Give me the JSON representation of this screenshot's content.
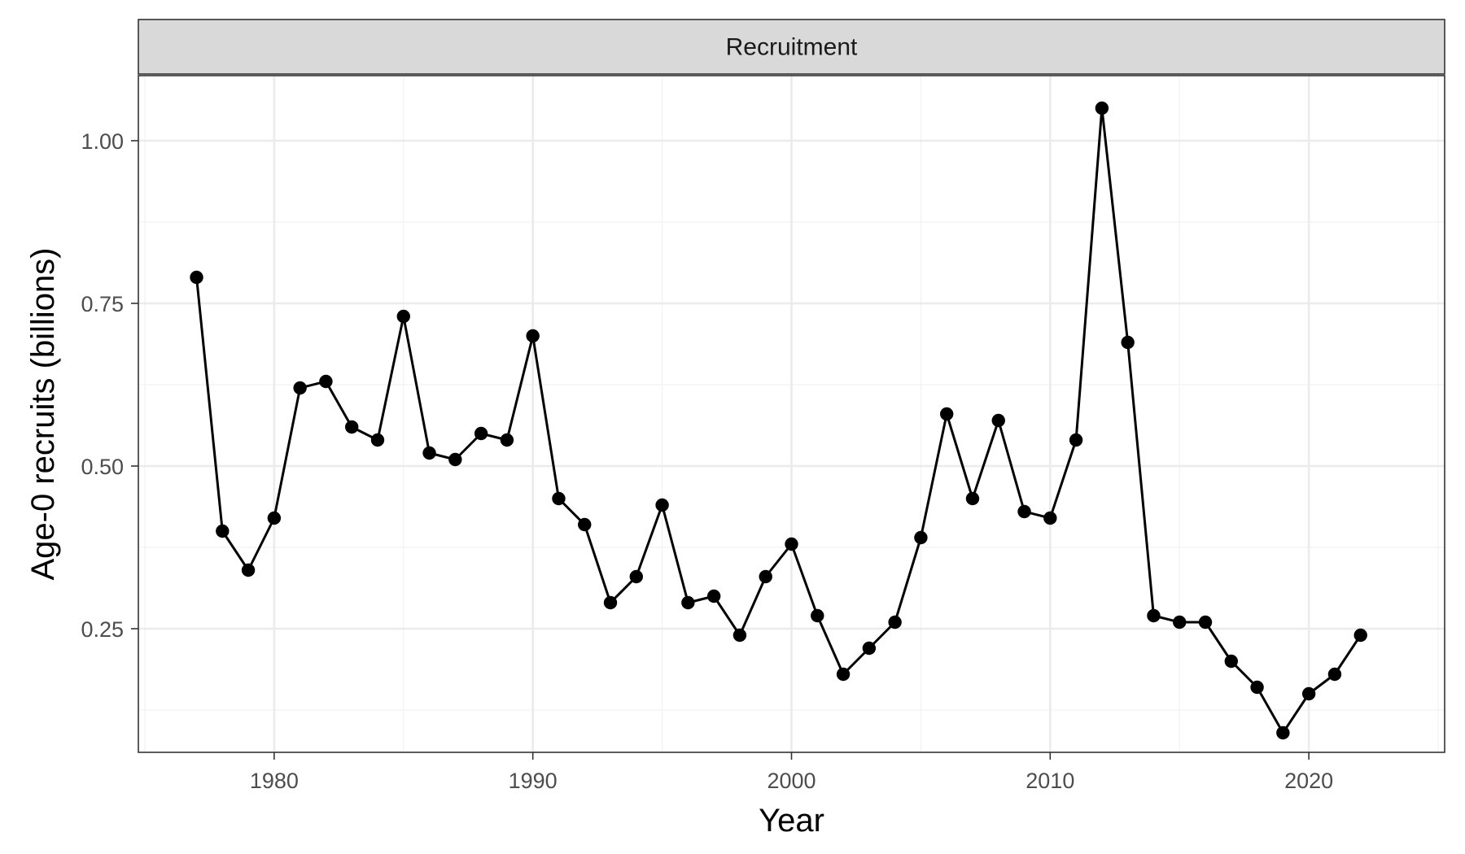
{
  "chart_data": {
    "type": "line",
    "facet_label": "Recruitment",
    "xlabel": "Year",
    "ylabel": "Age-0 recruits (billions)",
    "xlim": [
      1974.75,
      2025.25
    ],
    "ylim": [
      0.06,
      1.1
    ],
    "x_ticks": [
      1980,
      1990,
      2000,
      2010,
      2020
    ],
    "x_tick_labels": [
      "1980",
      "1990",
      "2000",
      "2010",
      "2020"
    ],
    "y_ticks": [
      0.25,
      0.5,
      0.75,
      1.0
    ],
    "y_tick_labels": [
      "0.25",
      "0.50",
      "0.75",
      "1.00"
    ],
    "grid": true,
    "series": [
      {
        "x": [
          1977,
          1978,
          1979,
          1980,
          1981,
          1982,
          1983,
          1984,
          1985,
          1986,
          1987,
          1988,
          1989,
          1990,
          1991,
          1992,
          1993,
          1994,
          1995,
          1996,
          1997,
          1998,
          1999,
          2000,
          2001,
          2002,
          2003,
          2004,
          2005,
          2006,
          2007,
          2008,
          2009,
          2010,
          2011,
          2012,
          2013,
          2014,
          2015,
          2016,
          2017,
          2018,
          2019,
          2020,
          2021,
          2022
        ],
        "values": [
          0.79,
          0.4,
          0.34,
          0.42,
          0.62,
          0.63,
          0.56,
          0.54,
          0.73,
          0.52,
          0.51,
          0.55,
          0.54,
          0.7,
          0.45,
          0.41,
          0.29,
          0.33,
          0.44,
          0.29,
          0.3,
          0.24,
          0.33,
          0.38,
          0.27,
          0.18,
          0.22,
          0.26,
          0.39,
          0.58,
          0.45,
          0.57,
          0.43,
          0.42,
          0.54,
          1.05,
          0.69,
          0.27,
          0.26,
          0.26,
          0.2,
          0.16,
          0.09,
          0.15,
          0.18,
          0.24
        ]
      }
    ],
    "colors": {
      "line": "#000000",
      "point": "#000000",
      "strip_fill": "#d9d9d9",
      "grid_major": "#ebebeb",
      "grid_minor": "#f2f2f2",
      "panel_border": "#333333"
    }
  }
}
